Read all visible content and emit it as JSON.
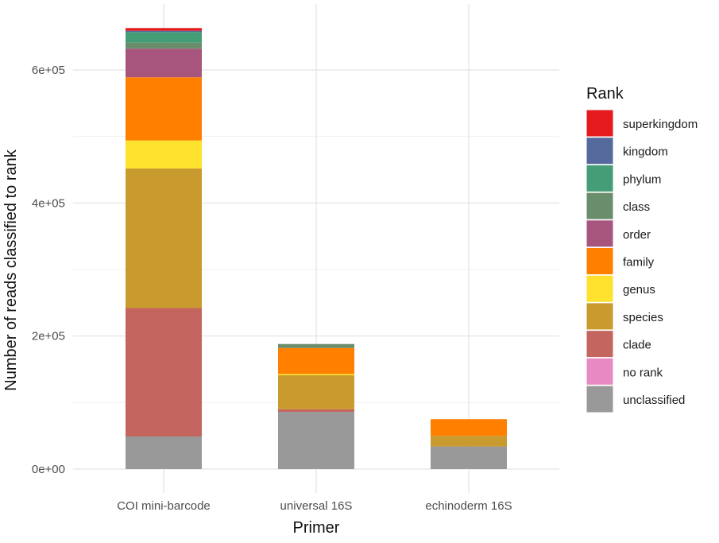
{
  "chart_data": {
    "type": "bar",
    "stacked": true,
    "categories": [
      "COI mini-barcode",
      "universal 16S",
      "echinoderm 16S"
    ],
    "xlabel": "Primer",
    "ylabel": "Number of reads classified to rank",
    "ylim": [
      0,
      700000
    ],
    "yticks": [
      0,
      200000,
      400000,
      600000
    ],
    "ytick_labels": [
      "0e+00",
      "2e+05",
      "4e+05",
      "6e+05"
    ],
    "grid": true,
    "legend": {
      "title": "Rank",
      "position": "right"
    },
    "series": [
      {
        "name": "unclassified",
        "color": "#999999",
        "values": [
          49000,
          86000,
          34000
        ]
      },
      {
        "name": "no rank",
        "color": "#E78AC3",
        "values": [
          0,
          0,
          0
        ]
      },
      {
        "name": "clade",
        "color": "#C5655F",
        "values": [
          193000,
          4000,
          0
        ]
      },
      {
        "name": "species",
        "color": "#C99A2D",
        "values": [
          210000,
          51000,
          16000
        ]
      },
      {
        "name": "genus",
        "color": "#FFE22E",
        "values": [
          42000,
          2000,
          0
        ]
      },
      {
        "name": "family",
        "color": "#FF7F00",
        "values": [
          95000,
          39000,
          25000
        ]
      },
      {
        "name": "order",
        "color": "#A8557E",
        "values": [
          43000,
          0,
          0
        ]
      },
      {
        "name": "class",
        "color": "#6A8D6B",
        "values": [
          9000,
          6000,
          0
        ]
      },
      {
        "name": "phylum",
        "color": "#459D77",
        "values": [
          16000,
          0,
          0
        ]
      },
      {
        "name": "kingdom",
        "color": "#56699C",
        "values": [
          2000,
          0,
          0
        ]
      },
      {
        "name": "superkingdom",
        "color": "#E41A1C",
        "values": [
          4000,
          0,
          0
        ]
      }
    ],
    "legend_order": [
      "superkingdom",
      "kingdom",
      "phylum",
      "class",
      "order",
      "family",
      "genus",
      "species",
      "clade",
      "no rank",
      "unclassified"
    ]
  }
}
